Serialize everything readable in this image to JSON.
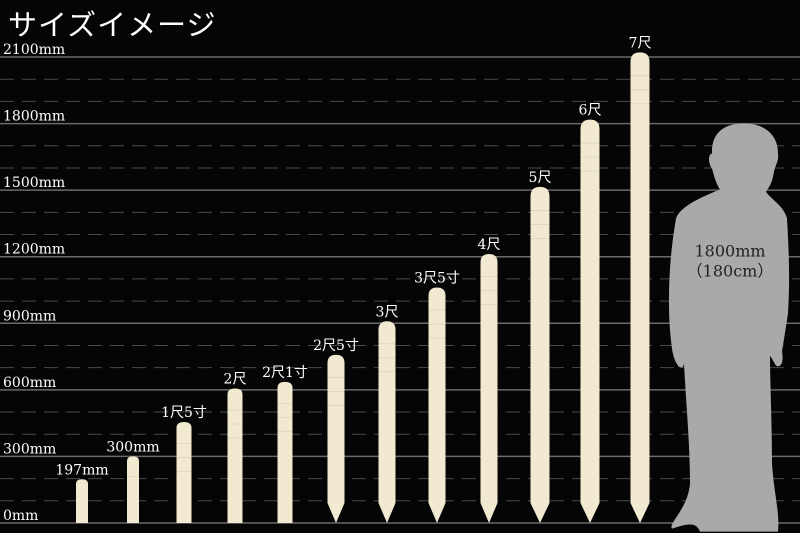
{
  "title": "サイズイメージ",
  "chart_data": {
    "type": "bar",
    "title": "サイズイメージ",
    "ylim": [
      0,
      2100
    ],
    "yticks": [
      0,
      300,
      600,
      900,
      1200,
      1500,
      1800,
      2100
    ],
    "ytick_labels": [
      "0mm",
      "300mm",
      "600mm",
      "900mm",
      "1200mm",
      "1500mm",
      "1800mm",
      "2100mm"
    ],
    "minor_grid_step": 100,
    "grid": true,
    "categories": [
      "197mm",
      "300mm",
      "1尺5寸",
      "2尺",
      "2尺1寸",
      "2尺5寸",
      "3尺",
      "3尺5寸",
      "4尺",
      "5尺",
      "6尺",
      "7尺"
    ],
    "values": [
      197,
      300,
      455,
      606,
      636,
      758,
      909,
      1061,
      1212,
      1515,
      1818,
      2121
    ],
    "pointed_tip": [
      false,
      false,
      false,
      false,
      false,
      true,
      true,
      true,
      true,
      true,
      true,
      true
    ],
    "bar_color": "#f1ead0",
    "reference": {
      "label_1": "1800mm",
      "label_2": "（180cm）",
      "value": 1800,
      "color": "#a9a9a9"
    }
  }
}
